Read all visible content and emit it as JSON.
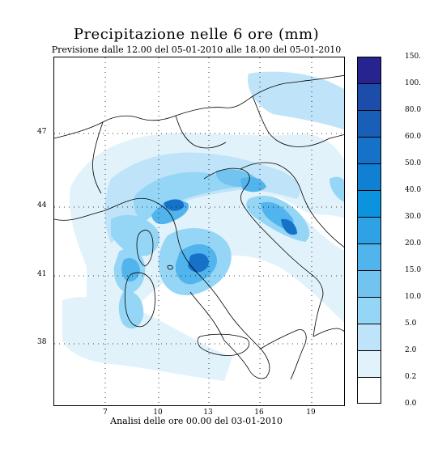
{
  "header": {
    "title": "Precipitazione nelle 6 ore (mm)",
    "subtitle": "Previsione dalle 12.00 del 05-01-2010 alle 18.00 del 05-01-2010"
  },
  "footer": {
    "analysis": "Analisi delle ore 00.00 del 03-01-2010"
  },
  "map": {
    "lat_labels": [
      "47",
      "44",
      "41",
      "38"
    ],
    "lon_labels": [
      "7",
      "10",
      "13",
      "16",
      "19"
    ]
  },
  "legend": {
    "levels": [
      "150.0",
      "100.0",
      "80.0",
      "60.0",
      "50.0",
      "40.0",
      "30.0",
      "20.0",
      "15.0",
      "10.0",
      "5.0",
      "2.0",
      "0.2",
      "0.0"
    ],
    "colors": [
      "#27238f",
      "#1c4da8",
      "#1a5fb7",
      "#1572c8",
      "#0f80d2",
      "#0b93de",
      "#2ea2e5",
      "#52b4ec",
      "#73c3f0",
      "#95d6f6",
      "#bfe3f8",
      "#e1f2fb",
      "#ffffff"
    ]
  }
}
